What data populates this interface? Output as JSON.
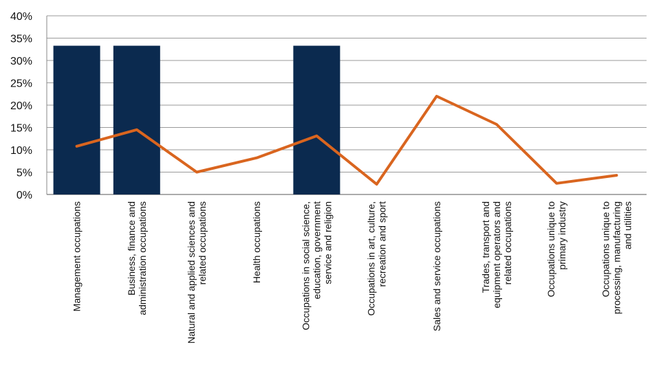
{
  "chart_data": {
    "type": "bar",
    "categories": [
      [
        "Management occupations"
      ],
      [
        "Business, finance and",
        "administration occupations"
      ],
      [
        "Natural and applied sciences and",
        "related occupations"
      ],
      [
        "Health occupations"
      ],
      [
        "Occupations in social science,",
        "education, government",
        "service and religion"
      ],
      [
        "Occupations in art, culture,",
        "recreation and sport"
      ],
      [
        "Sales and service occupations"
      ],
      [
        "Trades, transport and",
        "equipment operators and",
        "related occupations"
      ],
      [
        "Occupations unique to",
        "primary industry"
      ],
      [
        "Occupations unique to",
        "processing, manufacturing",
        "and utilities"
      ]
    ],
    "series": [
      {
        "type": "bar",
        "values": [
          33.3,
          33.3,
          0,
          0,
          33.3,
          0,
          0,
          0,
          0,
          0
        ],
        "color": "#0b2a4f"
      },
      {
        "type": "line",
        "values": [
          10.8,
          14.5,
          5.0,
          8.2,
          13.1,
          2.3,
          22.0,
          15.7,
          2.5,
          4.3
        ],
        "color": "#d9651f"
      }
    ],
    "ylim": [
      0,
      40
    ],
    "yticks": [
      0,
      5,
      10,
      15,
      20,
      25,
      30,
      35,
      40
    ],
    "ytick_labels": [
      "0%",
      "5%",
      "10%",
      "15%",
      "20%",
      "25%",
      "30%",
      "35%",
      "40%"
    ],
    "grid": true,
    "title": "",
    "xlabel": "",
    "ylabel": ""
  }
}
